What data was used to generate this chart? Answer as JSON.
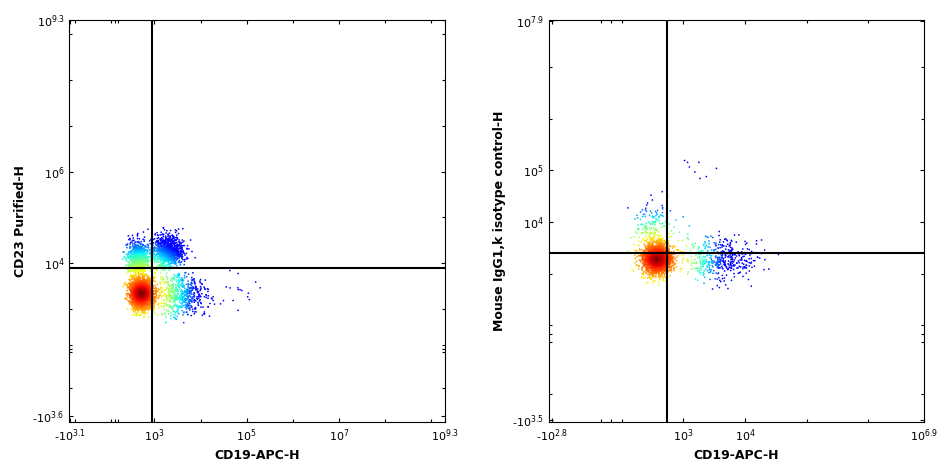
{
  "plot1": {
    "xlabel": "CD19-APC-H",
    "ylabel": "CD23 Purified-H",
    "xlim_min": -1300,
    "xlim_max": 2000000000,
    "ylim_min": -5500,
    "ylim_max": 2000000000,
    "xgate": 900,
    "ygate": 8000,
    "linthresh": 200,
    "linscale": 0.15,
    "xtick_vals": [
      -1259,
      1000,
      100000,
      10000000,
      1995262315
    ],
    "xtick_labels": [
      "-10",
      "10",
      "10",
      "10",
      "10"
    ],
    "xtick_exps": [
      "3.1",
      "3",
      "5",
      "7",
      "9.3"
    ],
    "ytick_vals": [
      -3981,
      10000,
      1000000,
      1995262315
    ],
    "ytick_labels": [
      "-10",
      "10",
      "10",
      "10"
    ],
    "ytick_exps": [
      "3.6",
      "4",
      "6",
      "9.3"
    ]
  },
  "plot2": {
    "xlabel": "CD19-APC-H",
    "ylabel": "Mouse IgG1,k isotype control-H",
    "xlim_min": -700,
    "xlim_max": 8000000,
    "ylim_min": -3500,
    "ylim_max": 80000000,
    "xgate": 550,
    "ygate": 2500,
    "linthresh": 100,
    "linscale": 0.15,
    "xtick_vals": [
      -631,
      1000,
      10000,
      7943282
    ],
    "xtick_labels": [
      "-10",
      "10",
      "10",
      "10"
    ],
    "xtick_exps": [
      "2.8",
      "3",
      "4",
      "6.9"
    ],
    "ytick_vals": [
      -3162,
      10000,
      100000,
      79432823
    ],
    "ytick_labels": [
      "-10",
      "10",
      "10",
      "10"
    ],
    "ytick_exps": [
      "3.5",
      "4",
      "5",
      "7.9"
    ]
  },
  "bg_color": "#ffffff",
  "line_color": "#000000",
  "line_width": 1.5,
  "dot_size": 1.5,
  "seed": 42
}
